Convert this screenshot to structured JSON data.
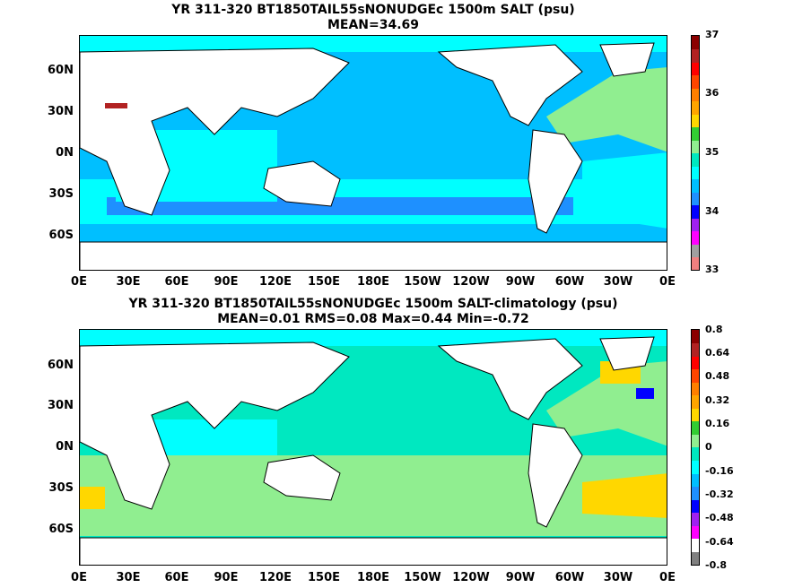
{
  "panels": [
    {
      "id": "salt",
      "title": "YR 311-320 BT1850TAIL55sNONUDGEc 1500m SALT (psu)",
      "subtitle": "MEAN=34.69",
      "lat_labels": [
        "60N",
        "30N",
        "0N",
        "30S",
        "60S"
      ],
      "lon_labels": [
        "0E",
        "30E",
        "60E",
        "90E",
        "120E",
        "150E",
        "180E",
        "150W",
        "120W",
        "90W",
        "60W",
        "30W",
        "0E"
      ],
      "colorbar_labels": [
        "37",
        "36",
        "35",
        "34",
        "33"
      ],
      "colorbar_colors": [
        "#f08080",
        "#a0a0a0",
        "#ff00ff",
        "#a020f0",
        "#0000ff",
        "#1e90ff",
        "#00bfff",
        "#00ffff",
        "#00e8c0",
        "#90ee90",
        "#32cd32",
        "#ffd700",
        "#ffa500",
        "#ff7f00",
        "#ff4500",
        "#ff0000",
        "#b22222",
        "#8b0000"
      ],
      "colors": {
        "main_ocean": "#00bfff",
        "band_south": "#00ffff",
        "atlantic_north": "#90ee90",
        "atlantic_south": "#00ffff",
        "indian": "#00ffff",
        "southern_deep": "#1e90ff",
        "land": "#ffffff",
        "mediterranean": "#b22222"
      }
    },
    {
      "id": "salt_clim",
      "title": "YR 311-320 BT1850TAIL55sNONUDGEc 1500m SALT-climatology (psu)",
      "subtitle": "MEAN=0.01   RMS=0.08   Max=0.44   Min=-0.72",
      "lat_labels": [
        "60N",
        "30N",
        "0N",
        "30S",
        "60S"
      ],
      "lon_labels": [
        "0E",
        "30E",
        "60E",
        "90E",
        "120E",
        "150E",
        "180E",
        "150W",
        "120W",
        "90W",
        "60W",
        "30W",
        "0E"
      ],
      "colorbar_labels": [
        "0.8",
        "0.64",
        "0.48",
        "0.32",
        "0.16",
        "0",
        "-0.16",
        "-0.32",
        "-0.48",
        "-0.64",
        "-0.8"
      ],
      "colorbar_colors": [
        "#808080",
        "#ffffff",
        "#ff00ff",
        "#a020f0",
        "#0000ff",
        "#1e90ff",
        "#00bfff",
        "#00ffff",
        "#00e8c0",
        "#90ee90",
        "#32cd32",
        "#ffd700",
        "#ffa500",
        "#ff7f00",
        "#ff4500",
        "#ff0000",
        "#b22222",
        "#8b0000"
      ],
      "colors": {
        "main_ocean": "#00e8c0",
        "band_south": "#90ee90",
        "atlantic_north": "#90ee90",
        "atlantic_south": "#ffd700",
        "indian": "#00ffff",
        "southern_deep": "#90ee90",
        "land": "#ffffff",
        "labrador": "#ffd700",
        "gulf": "#0000ff"
      }
    }
  ]
}
